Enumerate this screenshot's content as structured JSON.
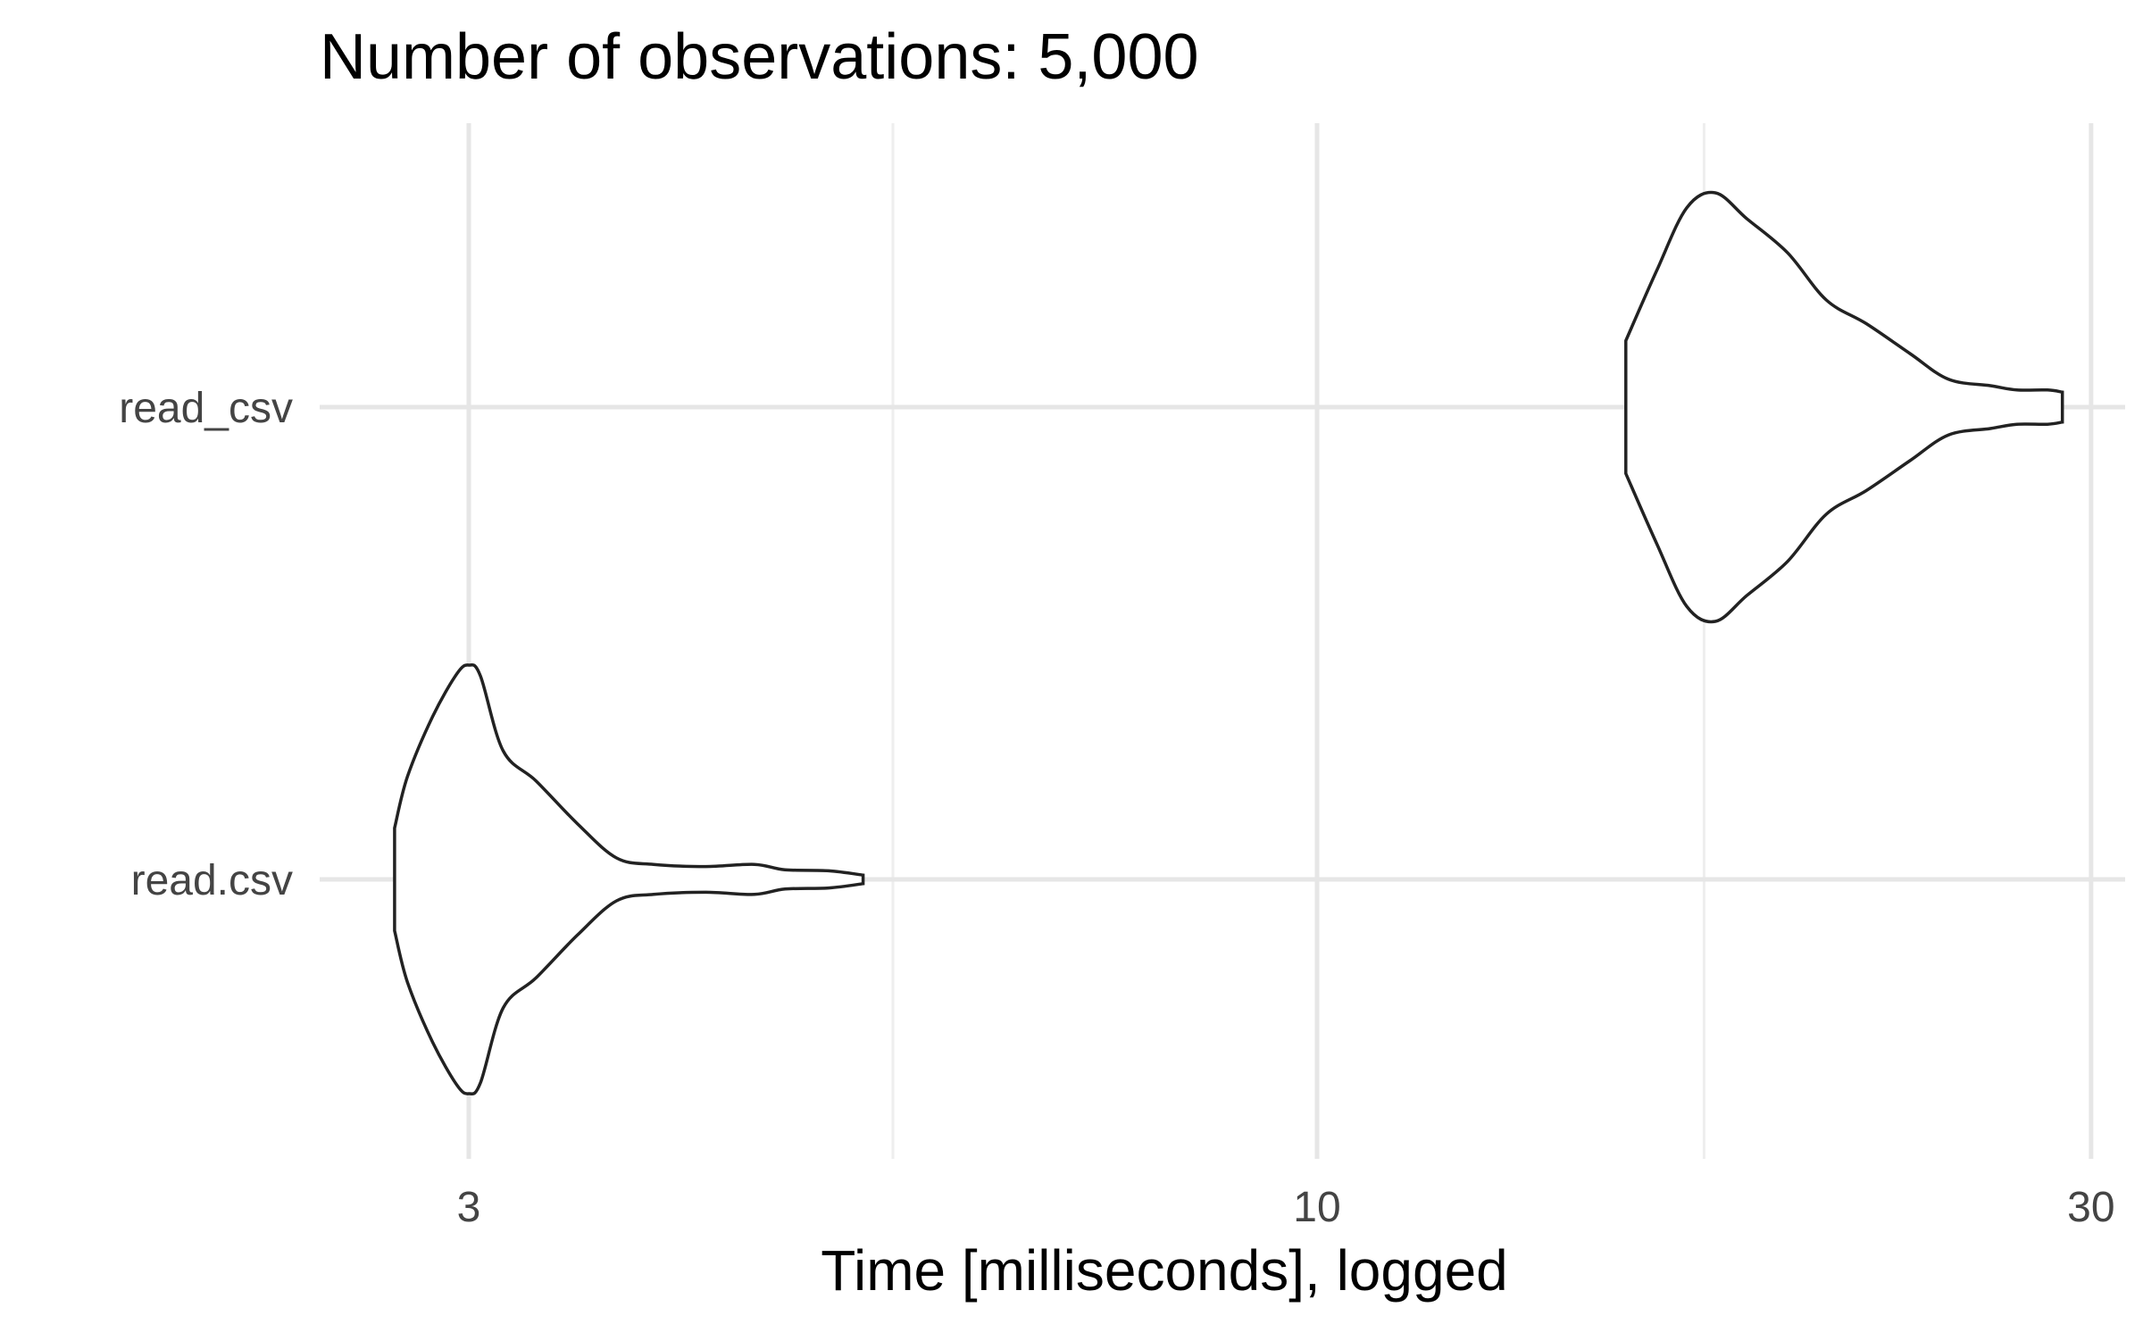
{
  "chart_data": {
    "type": "violin",
    "title": "Number of observations: 5,000",
    "xlabel": "Time [milliseconds], logged",
    "ylabel": "",
    "x_scale": "log10",
    "xlim": [
      2.6,
      32
    ],
    "x_ticks": [
      {
        "value": 3,
        "label": "3"
      },
      {
        "value": 10,
        "label": "10"
      },
      {
        "value": 30,
        "label": "30"
      }
    ],
    "x_minor_ticks": [
      5.4772,
      17.3205
    ],
    "grid": true,
    "categories": [
      "read.csv",
      "read_csv"
    ],
    "series": [
      {
        "name": "read.csv",
        "min": 2.7,
        "max": 5.25,
        "profile": [
          [
            2.7,
            0.24
          ],
          [
            2.75,
            0.48
          ],
          [
            2.85,
            0.76
          ],
          [
            2.95,
            0.96
          ],
          [
            3.0,
            1.0
          ],
          [
            3.05,
            0.95
          ],
          [
            3.15,
            0.6
          ],
          [
            3.3,
            0.46
          ],
          [
            3.5,
            0.26
          ],
          [
            3.7,
            0.1
          ],
          [
            3.9,
            0.07
          ],
          [
            4.2,
            0.06
          ],
          [
            4.5,
            0.07
          ],
          [
            4.7,
            0.045
          ],
          [
            5.0,
            0.04
          ],
          [
            5.25,
            0.02
          ]
        ]
      },
      {
        "name": "read_csv",
        "min": 15.5,
        "max": 28.8,
        "profile": [
          [
            15.5,
            0.31
          ],
          [
            16.2,
            0.64
          ],
          [
            16.9,
            0.93
          ],
          [
            17.6,
            1.0
          ],
          [
            18.4,
            0.88
          ],
          [
            19.5,
            0.72
          ],
          [
            20.6,
            0.5
          ],
          [
            21.8,
            0.39
          ],
          [
            23.2,
            0.25
          ],
          [
            24.5,
            0.13
          ],
          [
            26.0,
            0.1
          ],
          [
            27.0,
            0.08
          ],
          [
            28.2,
            0.08
          ],
          [
            28.8,
            0.07
          ]
        ]
      }
    ]
  }
}
